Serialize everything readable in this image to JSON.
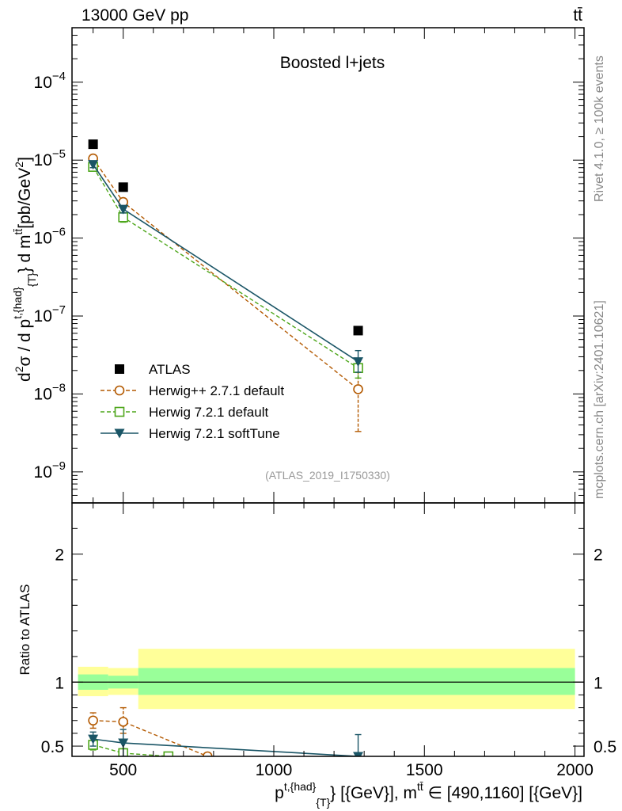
{
  "header": {
    "energy_label": "13000 GeV pp",
    "process_label": "tt̄"
  },
  "side_notes": {
    "rivet": "Rivet 4.1.0, ≥ 100k events",
    "mcplots": "mcplots.cern.ch [arXiv:2401.10621]"
  },
  "chart_data": [
    {
      "type": "line",
      "panel": "main",
      "title": "Boosted l+jets",
      "analysis_id": "(ATLAS_2019_I1750330)",
      "ylabel": "d²σ / d p^{t,{had}}_{T} d m^{tt̄} [pb/GeV²]",
      "ylabel_parts": {
        "main": "d",
        "sup1": "2",
        "sigma": "σ / d p",
        "sup2": "t,{had}",
        "sub1": "{T}",
        "mid": "} d m",
        "sup3": "tt̄",
        "unit": "[pb/GeV",
        "sup4": "2",
        "close": "]"
      },
      "yscale": "log",
      "ylim": [
        4e-10,
        0.0005
      ],
      "xlim": [
        330,
        2030
      ],
      "ytick_labels": [
        {
          "base": "10",
          "exp": "−9",
          "value": 1e-09
        },
        {
          "base": "10",
          "exp": "−8",
          "value": 1e-08
        },
        {
          "base": "10",
          "exp": "−7",
          "value": 1e-07
        },
        {
          "base": "10",
          "exp": "−6",
          "value": 1e-06
        },
        {
          "base": "10",
          "exp": "−5",
          "value": 1e-05
        },
        {
          "base": "10",
          "exp": "−4",
          "value": 0.0001
        }
      ],
      "legend_position": "lower-left",
      "series": [
        {
          "name": "ATLAS",
          "color": "#000000",
          "marker": "filled-square",
          "line": "none",
          "x": [
            400,
            500,
            1280
          ],
          "y": [
            1.6e-05,
            4.5e-06,
            6.5e-08
          ]
        },
        {
          "name": "Herwig++ 2.7.1 default",
          "color": "#b35900",
          "marker": "open-circle",
          "line": "dashed",
          "x": [
            400,
            500,
            1280
          ],
          "y": [
            1.05e-05,
            2.9e-06,
            1.15e-08
          ],
          "err_lo": [
            9.5e-06,
            2.6e-06,
            3.3e-09
          ],
          "err_hi": [
            1.15e-05,
            3.2e-06,
            1.9e-08
          ]
        },
        {
          "name": "Herwig 7.2.1 default",
          "color": "#4da61a",
          "marker": "open-square",
          "line": "dashed",
          "x": [
            400,
            500,
            1280
          ],
          "y": [
            8.2e-06,
            1.85e-06,
            2.15e-08
          ],
          "err_lo": [
            7.5e-06,
            1.6e-06,
            1.6e-08
          ],
          "err_hi": [
            9e-06,
            2.1e-06,
            2.8e-08
          ]
        },
        {
          "name": "Herwig 7.2.1 softTune",
          "color": "#1a5566",
          "marker": "filled-triangle-down",
          "line": "solid",
          "x": [
            400,
            500,
            1280
          ],
          "y": [
            8.8e-06,
            2.35e-06,
            2.6e-08
          ],
          "err_lo": [
            8e-06,
            2.1e-06,
            1.9e-08
          ],
          "err_hi": [
            9.6e-06,
            2.6e-06,
            3.6e-08
          ]
        }
      ]
    },
    {
      "type": "line",
      "panel": "ratio",
      "ylabel": "Ratio to ATLAS",
      "xlabel": "p^{t,{had}}_{T} [{GeV}], m^{tt̄} ∈ [490,1160] [{GeV}]",
      "xlabel_parts": {
        "p": "p",
        "sup1": "t,{had}",
        "sub1": "{T}",
        "mid": "} [{GeV}], m",
        "sup2": "tt̄",
        "rest": " ∈ [490,1160] [{GeV}]"
      },
      "ylim": [
        0.42,
        2.4
      ],
      "xlim": [
        330,
        2030
      ],
      "ytick_labels": [
        "0.5",
        "1",
        "2"
      ],
      "ytick_values": [
        0.5,
        1,
        2
      ],
      "xtick_labels": [
        "500",
        "1000",
        "1500",
        "2000"
      ],
      "xtick_values": [
        500,
        1000,
        1500,
        2000
      ],
      "bands": [
        {
          "x_lo": 350,
          "x_hi": 450,
          "yellow": [
            0.89,
            1.12
          ],
          "green": [
            0.94,
            1.06
          ]
        },
        {
          "x_lo": 450,
          "x_hi": 550,
          "yellow": [
            0.9,
            1.11
          ],
          "green": [
            0.95,
            1.05
          ]
        },
        {
          "x_lo": 550,
          "x_hi": 2000,
          "yellow": [
            0.79,
            1.26
          ],
          "green": [
            0.9,
            1.11
          ]
        }
      ],
      "band_colors": {
        "yellow": "#ffff99",
        "green": "#99ff99"
      },
      "series": [
        {
          "name": "Herwig++ 2.7.1 default",
          "color": "#b35900",
          "marker": "open-circle",
          "line": "dashed",
          "x": [
            400,
            500,
            780
          ],
          "y": [
            0.7,
            0.69,
            0.42
          ],
          "err_lo": [
            0.64,
            0.6,
            0.42
          ],
          "err_hi": [
            0.76,
            0.8,
            0.42
          ]
        },
        {
          "name": "Herwig 7.2.1 default",
          "color": "#4da61a",
          "marker": "open-square",
          "line": "dashed",
          "x": [
            400,
            500,
            650
          ],
          "y": [
            0.51,
            0.445,
            0.42
          ],
          "err_lo": [
            0.47,
            0.42,
            0.42
          ],
          "err_hi": [
            0.56,
            0.48,
            0.42
          ]
        },
        {
          "name": "Herwig 7.2.1 softTune",
          "color": "#1a5566",
          "marker": "filled-triangle-down",
          "line": "solid",
          "x": [
            400,
            500,
            1280
          ],
          "y": [
            0.555,
            0.525,
            0.42
          ],
          "err_lo": [
            0.5,
            0.42,
            0.42
          ],
          "err_hi": [
            0.61,
            0.63,
            0.59
          ]
        }
      ]
    }
  ]
}
